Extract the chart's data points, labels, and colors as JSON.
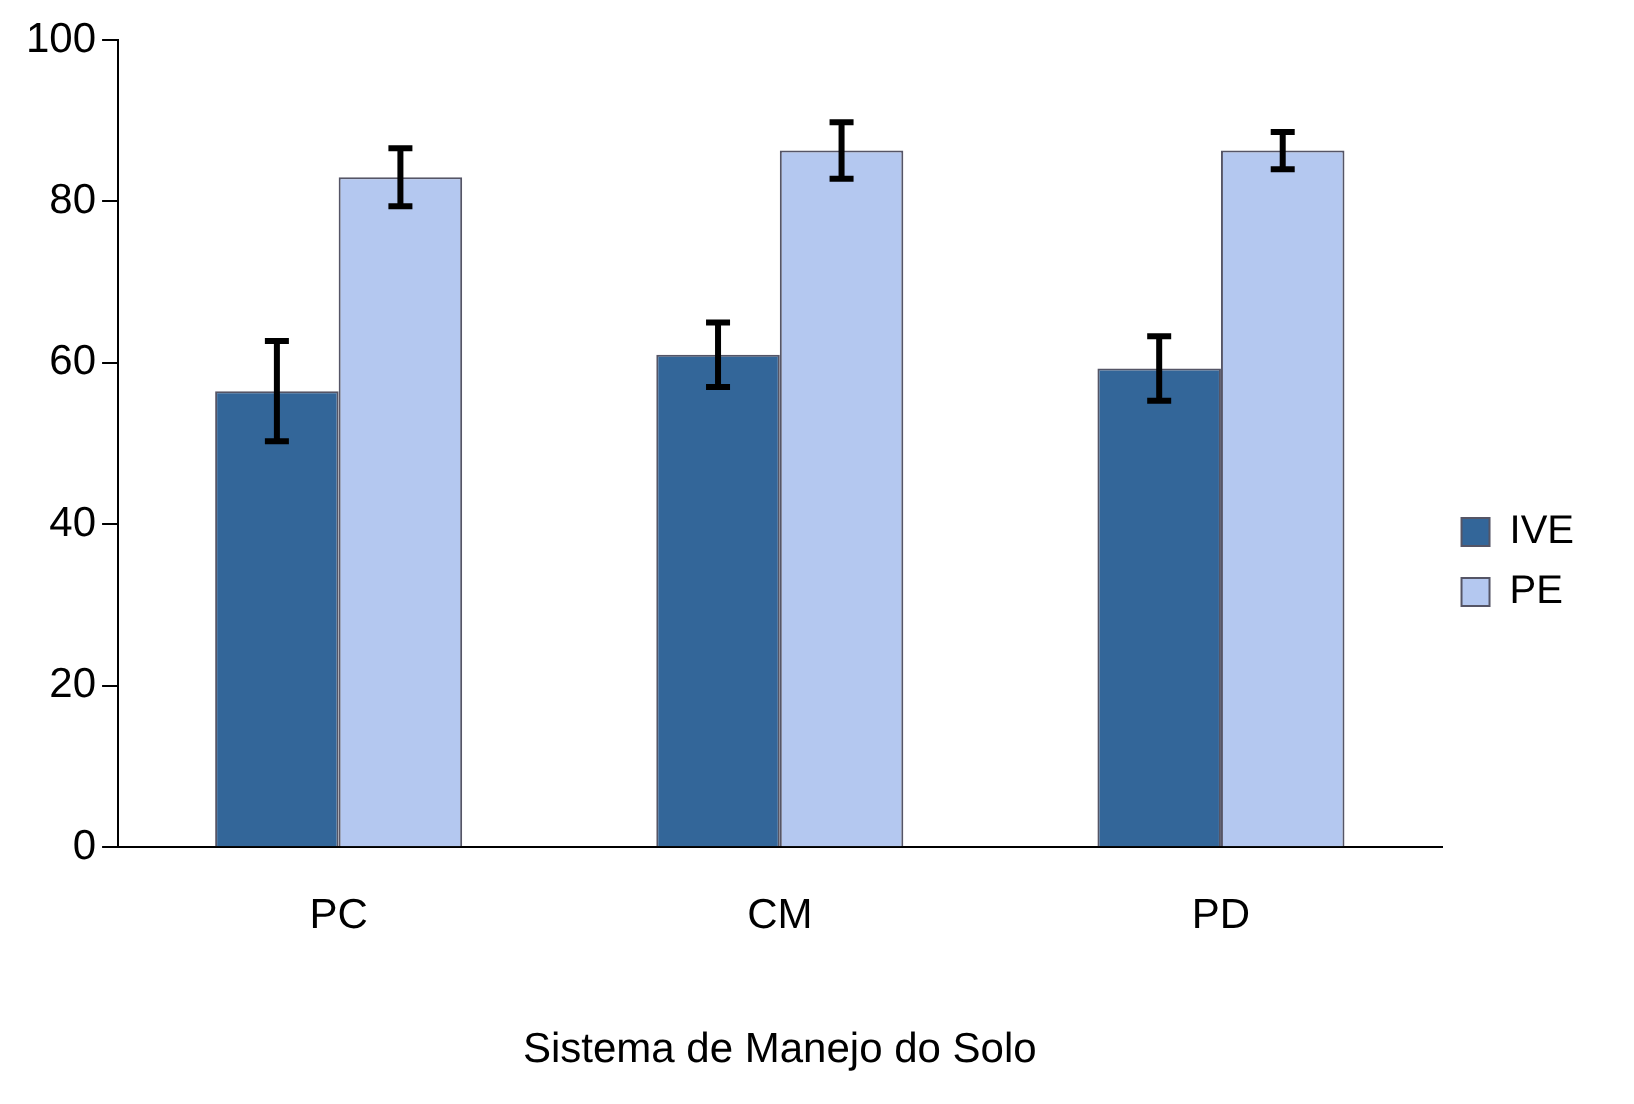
{
  "chart_data": {
    "type": "bar",
    "xlabel": "Sistema de Manejo do Solo",
    "categories": [
      "PC",
      "CM",
      "PD"
    ],
    "series": [
      {
        "name": "IVE",
        "color": "#336699",
        "values": [
          56.5,
          61,
          59.3
        ],
        "errors": [
          6.2,
          4,
          4
        ]
      },
      {
        "name": "PE",
        "color": "#b4c8f0",
        "values": [
          83,
          86.3,
          86.3
        ],
        "errors": [
          3.6,
          3.5,
          2.3
        ]
      }
    ],
    "ylim": [
      0,
      100
    ],
    "yticks": [
      0,
      20,
      40,
      60,
      80,
      100
    ],
    "grid": false,
    "legend": "right"
  }
}
